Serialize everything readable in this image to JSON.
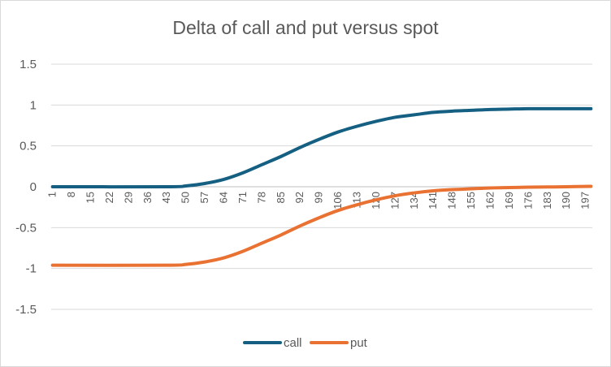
{
  "chart_data": {
    "type": "line",
    "title": "Delta of call and put versus spot",
    "xlabel": "",
    "ylabel": "",
    "ylim": [
      -1.5,
      1.5
    ],
    "yticks": [
      "1.5",
      "1",
      "0.5",
      "0",
      "-0.5",
      "-1",
      "-1.5"
    ],
    "x_start": 1,
    "x_end": 199,
    "x_tick_step": 7,
    "legend": "bottom",
    "grid": true,
    "series": [
      {
        "name": "call",
        "color": "#156082",
        "points": [
          [
            1,
            0
          ],
          [
            43,
            0
          ],
          [
            50,
            0.01
          ],
          [
            57,
            0.04
          ],
          [
            64,
            0.09
          ],
          [
            71,
            0.17
          ],
          [
            78,
            0.27
          ],
          [
            85,
            0.37
          ],
          [
            92,
            0.48
          ],
          [
            99,
            0.58
          ],
          [
            106,
            0.67
          ],
          [
            113,
            0.74
          ],
          [
            120,
            0.8
          ],
          [
            127,
            0.85
          ],
          [
            134,
            0.88
          ],
          [
            141,
            0.91
          ],
          [
            148,
            0.925
          ],
          [
            155,
            0.935
          ],
          [
            162,
            0.945
          ],
          [
            169,
            0.95
          ],
          [
            176,
            0.955
          ],
          [
            183,
            0.955
          ],
          [
            190,
            0.955
          ],
          [
            199,
            0.955
          ]
        ]
      },
      {
        "name": "put",
        "color": "#e97132",
        "points": [
          [
            1,
            -0.96
          ],
          [
            43,
            -0.96
          ],
          [
            50,
            -0.95
          ],
          [
            57,
            -0.92
          ],
          [
            64,
            -0.87
          ],
          [
            71,
            -0.79
          ],
          [
            78,
            -0.69
          ],
          [
            85,
            -0.59
          ],
          [
            92,
            -0.48
          ],
          [
            99,
            -0.38
          ],
          [
            106,
            -0.29
          ],
          [
            113,
            -0.22
          ],
          [
            120,
            -0.16
          ],
          [
            127,
            -0.11
          ],
          [
            134,
            -0.075
          ],
          [
            141,
            -0.05
          ],
          [
            148,
            -0.035
          ],
          [
            155,
            -0.025
          ],
          [
            162,
            -0.015
          ],
          [
            169,
            -0.01
          ],
          [
            176,
            -0.005
          ],
          [
            183,
            -0.003
          ],
          [
            190,
            0
          ],
          [
            199,
            0.005
          ]
        ]
      }
    ]
  }
}
